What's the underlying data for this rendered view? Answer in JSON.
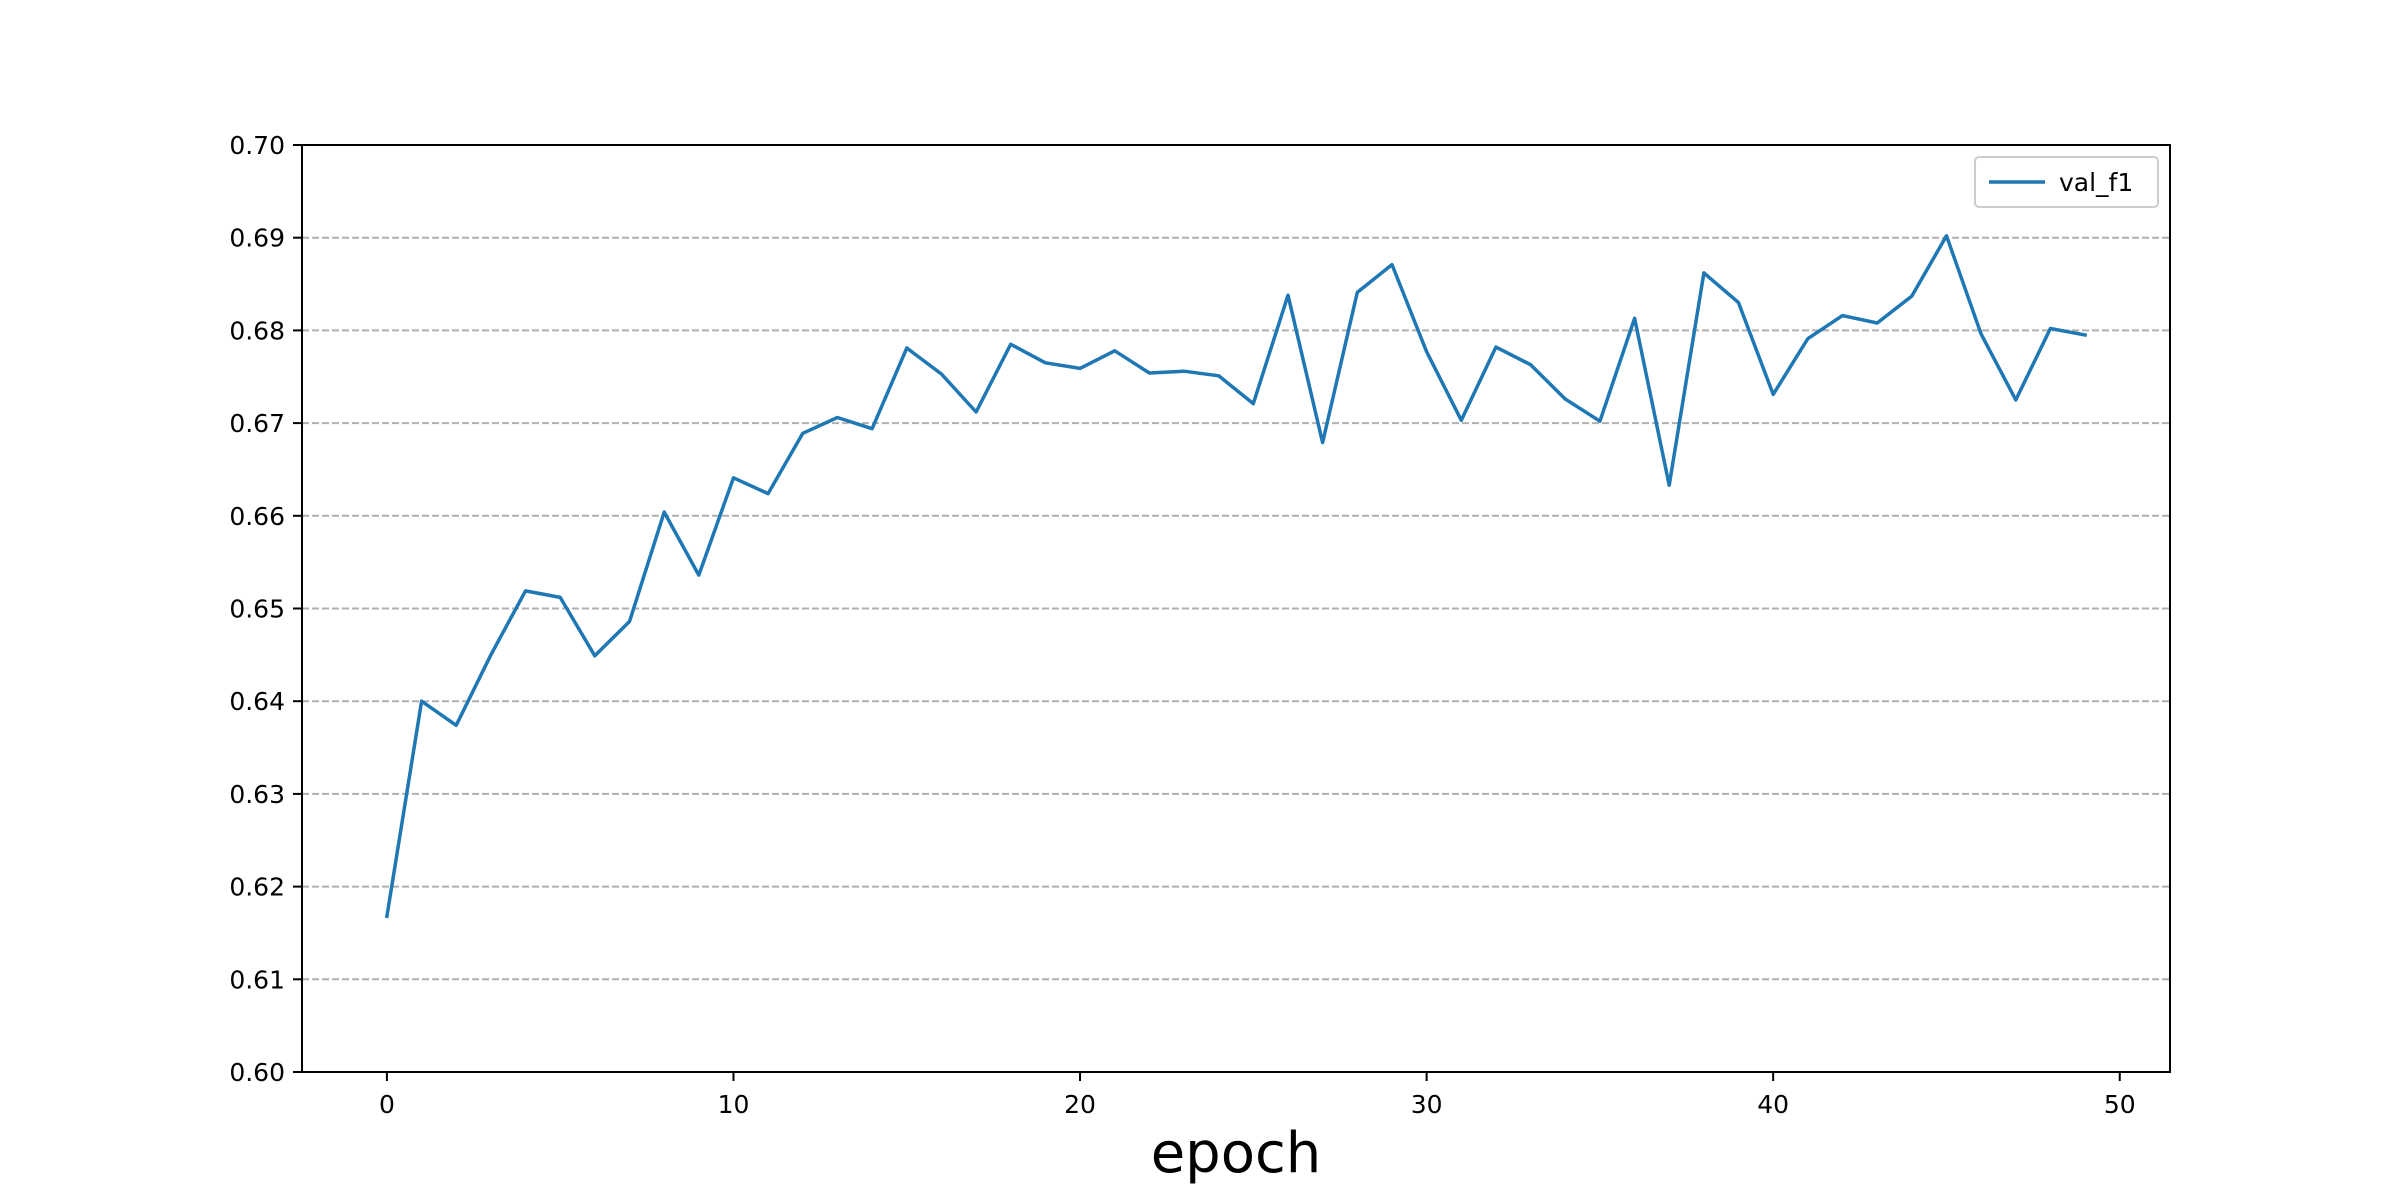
{
  "chart_data": {
    "type": "line",
    "title": "",
    "xlabel": "epoch",
    "ylabel": "",
    "xlim": [
      -2.45,
      51.45
    ],
    "ylim": [
      0.6,
      0.7
    ],
    "xticks": [
      0,
      10,
      20,
      30,
      40,
      50
    ],
    "yticks": [
      0.6,
      0.61,
      0.62,
      0.63,
      0.64,
      0.65,
      0.66,
      0.67,
      0.68,
      0.69,
      0.7
    ],
    "grid": {
      "axis": "y",
      "style": "dashed"
    },
    "legend": {
      "position": "top-right"
    },
    "series": [
      {
        "name": "val_f1",
        "color": "#1f77b4",
        "x": [
          0,
          1,
          2,
          3,
          4,
          5,
          6,
          7,
          8,
          9,
          10,
          11,
          12,
          13,
          14,
          15,
          16,
          17,
          18,
          19,
          20,
          21,
          22,
          23,
          24,
          25,
          26,
          27,
          28,
          29,
          30,
          31,
          32,
          33,
          34,
          35,
          36,
          37,
          38,
          39,
          40,
          41,
          42,
          43,
          44,
          45,
          46,
          47,
          48,
          49
        ],
        "values": [
          0.6168,
          0.64,
          0.6374,
          0.645,
          0.6519,
          0.6512,
          0.6449,
          0.6486,
          0.6604,
          0.6536,
          0.6641,
          0.6624,
          0.6689,
          0.6706,
          0.6694,
          0.6781,
          0.6753,
          0.6712,
          0.6785,
          0.6765,
          0.6759,
          0.6778,
          0.6754,
          0.6756,
          0.6751,
          0.6721,
          0.6838,
          0.6679,
          0.6841,
          0.6871,
          0.6777,
          0.6703,
          0.6782,
          0.6763,
          0.6726,
          0.6702,
          0.6813,
          0.6633,
          0.6862,
          0.683,
          0.6731,
          0.6791,
          0.6816,
          0.6808,
          0.6837,
          0.6902,
          0.6796,
          0.6725,
          0.6802,
          0.6795
        ]
      }
    ]
  }
}
